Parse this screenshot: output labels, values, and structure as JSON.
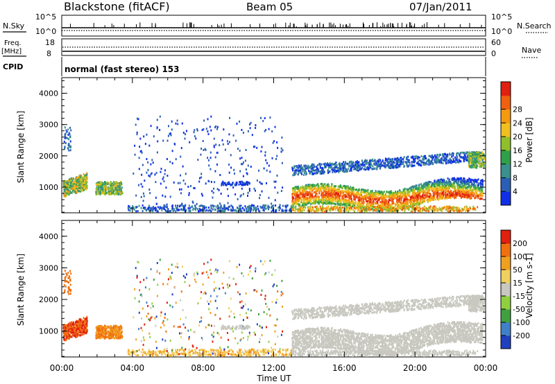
{
  "header": {
    "station": "Blackstone (fitACF)",
    "beam": "Beam 05",
    "date": "07/Jan/2011"
  },
  "params": {
    "nsky_label": "N.Sky",
    "nsearch_label": "N.Search",
    "nsky_ticks": [
      "10^5",
      "10^0"
    ],
    "nsearch_ticks": [
      "10^5",
      "10^0"
    ],
    "freq_label": "Freq.",
    "freq_unit": "[MHz]",
    "freq_ticks": [
      "18",
      "8"
    ],
    "nave_label": "Nave",
    "nave_ticks": [
      "60",
      "0"
    ],
    "cpid_label": "CPID",
    "cpid_text": "normal (fast stereo) 153"
  },
  "chart_data": [
    {
      "type": "heatmap",
      "ylabel": "Slant Range [km]",
      "xlabel": "Time UT",
      "x_ticks": [
        "00:00",
        "04:00",
        "08:00",
        "12:00",
        "16:00",
        "20:00",
        "00:00"
      ],
      "y_ticks": [
        "1000",
        "2000",
        "3000",
        "4000"
      ],
      "ylim": [
        180,
        4500
      ],
      "colorbar": {
        "label": "Power [dB]",
        "ticks": [
          "4",
          "8",
          "12",
          "16",
          "20",
          "24",
          "28"
        ],
        "colors": [
          "#1030e8",
          "#2a5fb5",
          "#3b8f8f",
          "#2fa04a",
          "#8fbf2a",
          "#f0c020",
          "#f59a10",
          "#f06010",
          "#e02010"
        ]
      }
    },
    {
      "type": "heatmap",
      "ylabel": "Slant Range [km]",
      "xlabel": "Time UT",
      "x_ticks": [
        "00:00",
        "04:00",
        "08:00",
        "12:00",
        "16:00",
        "20:00",
        "00:00"
      ],
      "y_ticks": [
        "1000",
        "2000",
        "3000",
        "4000"
      ],
      "ylim": [
        180,
        4500
      ],
      "colorbar": {
        "label": "Velocity [m s-1]",
        "ticks": [
          "200",
          "100",
          "50",
          "15",
          "-15",
          "-50",
          "-100",
          "-200"
        ],
        "colors": [
          "#2040c0",
          "#4080c8",
          "#40a040",
          "#90d040",
          "#c8c8c0",
          "#f0d060",
          "#f0a020",
          "#f07010",
          "#e02010"
        ]
      }
    }
  ]
}
